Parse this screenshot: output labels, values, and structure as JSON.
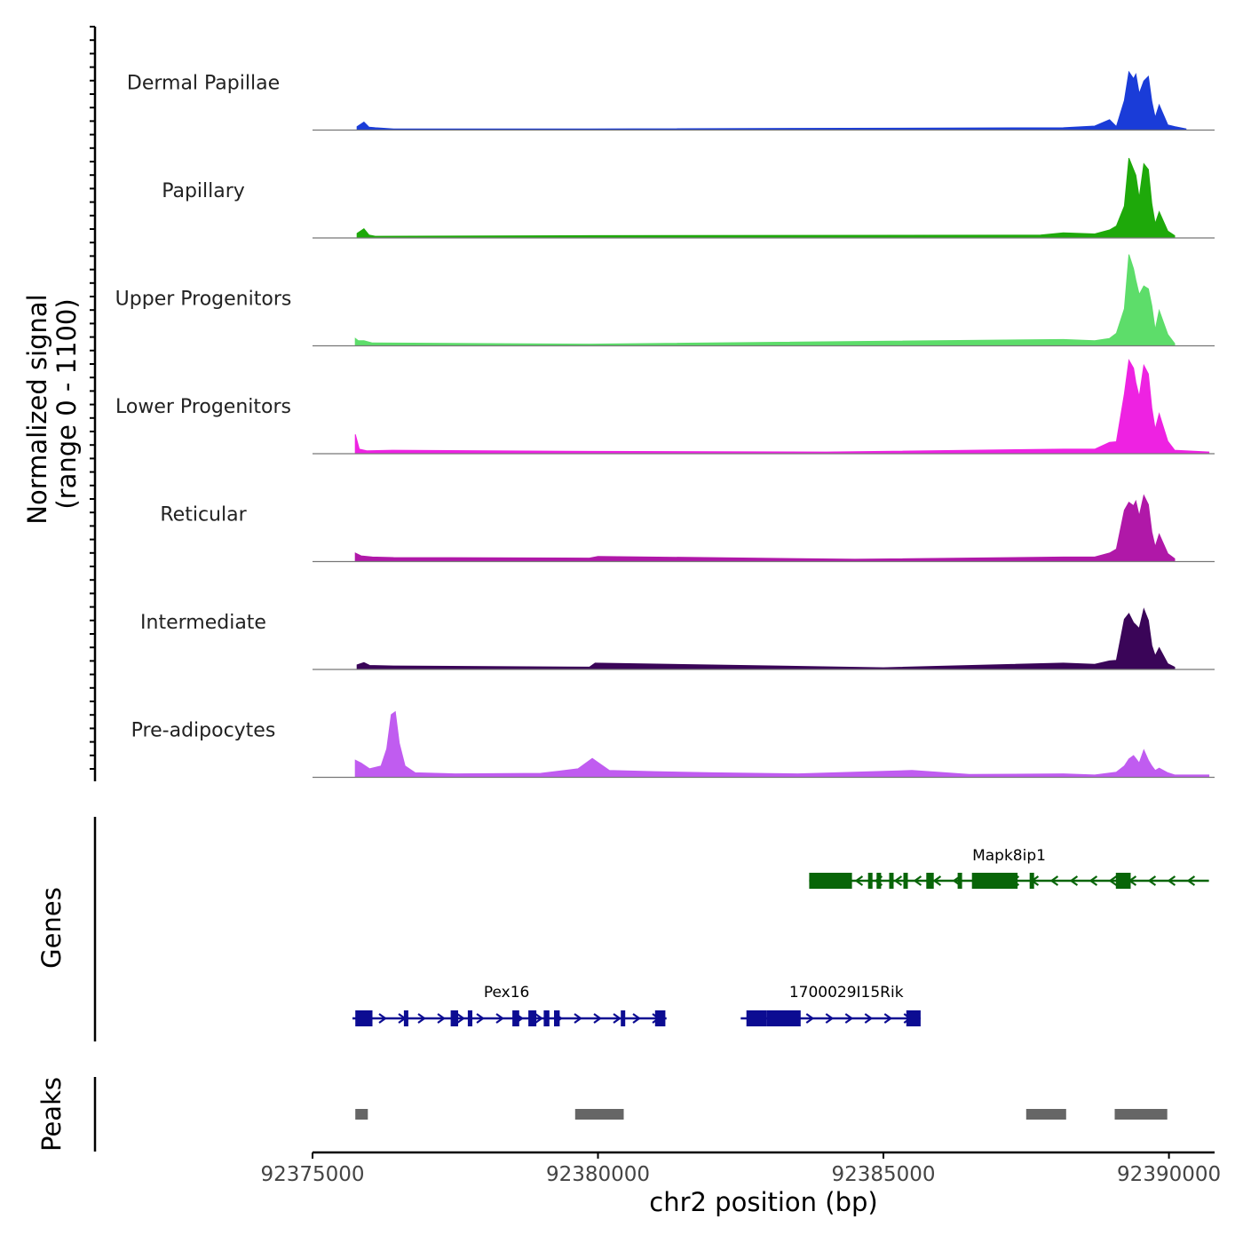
{
  "chart_data": {
    "type": "area",
    "title": "",
    "chromosome": "chr2",
    "xlabel": "chr2 position (bp)",
    "ylabel_line1": "Normalized signal",
    "ylabel_line2": "(range 0 - 1100)",
    "signal_range": [
      0,
      1100
    ],
    "xlim": [
      92375000,
      92390800
    ],
    "x_ticks": [
      92375000,
      92380000,
      92385000,
      92390000
    ],
    "x_tick_labels": [
      "92375000",
      "92380000",
      "92385000",
      "92390000"
    ],
    "tracks": [
      {
        "name": "Dermal Papillae",
        "color": "#1a3cd8",
        "x": [
          92375780,
          92375900,
          92375990,
          92376100,
          92376420,
          92379850,
          92388150,
          92388700,
          92388960,
          92389080,
          92389220,
          92389300,
          92389380,
          92389420,
          92389480,
          92389560,
          92389640,
          92389700,
          92389760,
          92389830,
          92389980,
          92390100,
          92390300
        ],
        "y": [
          60,
          140,
          50,
          40,
          20,
          20,
          40,
          70,
          180,
          60,
          520,
          1020,
          900,
          980,
          640,
          860,
          940,
          500,
          220,
          440,
          90,
          60,
          20
        ]
      },
      {
        "name": "Papillary",
        "color": "#1ea90a",
        "x": [
          92375780,
          92375900,
          92375990,
          92376100,
          92379850,
          92387750,
          92388150,
          92388700,
          92388960,
          92389080,
          92389220,
          92389300,
          92389380,
          92389420,
          92389480,
          92389560,
          92389640,
          92389700,
          92389760,
          92389830,
          92389980,
          92390100
        ],
        "y": [
          80,
          160,
          50,
          30,
          40,
          50,
          90,
          70,
          140,
          210,
          560,
          1400,
          1200,
          1100,
          700,
          1300,
          1200,
          600,
          250,
          460,
          120,
          40
        ]
      },
      {
        "name": "Upper Progenitors",
        "color": "#5ddd6a",
        "x": [
          92375750,
          92375800,
          92375900,
          92376050,
          92379850,
          92388150,
          92388700,
          92388960,
          92389080,
          92389220,
          92389300,
          92389380,
          92389420,
          92389480,
          92389560,
          92389640,
          92389700,
          92389760,
          92389830,
          92389980,
          92390100
        ],
        "y": [
          130,
          90,
          90,
          50,
          30,
          110,
          90,
          130,
          220,
          650,
          1600,
          1350,
          1150,
          900,
          1050,
          1000,
          700,
          280,
          620,
          200,
          40
        ]
      },
      {
        "name": "Lower Progenitors",
        "color": "#ee22e2",
        "x": [
          92375750,
          92375820,
          92375950,
          92376400,
          92379850,
          92384000,
          92388150,
          92388700,
          92388960,
          92389080,
          92389220,
          92389300,
          92389380,
          92389420,
          92389480,
          92389560,
          92389640,
          92389700,
          92389760,
          92389830,
          92389980,
          92390100,
          92390700
        ],
        "y": [
          340,
          80,
          50,
          60,
          40,
          30,
          80,
          80,
          200,
          210,
          1050,
          1640,
          1500,
          1250,
          1000,
          1550,
          1400,
          800,
          430,
          700,
          220,
          60,
          30
        ]
      },
      {
        "name": "Reticular",
        "color": "#b018a8",
        "x": [
          92375750,
          92375850,
          92376050,
          92376420,
          92379850,
          92380000,
          92384500,
          92388150,
          92388700,
          92388960,
          92389080,
          92389220,
          92389300,
          92389380,
          92389420,
          92389480,
          92389560,
          92389640,
          92389700,
          92389760,
          92389830,
          92389980,
          92390100
        ],
        "y": [
          150,
          100,
          80,
          70,
          60,
          90,
          40,
          80,
          80,
          150,
          220,
          900,
          1040,
          980,
          1060,
          800,
          1160,
          1000,
          520,
          260,
          480,
          140,
          50
        ]
      },
      {
        "name": "Intermediate",
        "color": "#3a0558",
        "x": [
          92375780,
          92375900,
          92376000,
          92376420,
          92379850,
          92379950,
          92385000,
          92388150,
          92388700,
          92388960,
          92389080,
          92389220,
          92389300,
          92389380,
          92389420,
          92389480,
          92389560,
          92389640,
          92389700,
          92389760,
          92389830,
          92389980,
          92390100
        ],
        "y": [
          80,
          120,
          70,
          60,
          40,
          110,
          30,
          110,
          90,
          150,
          160,
          880,
          980,
          820,
          780,
          720,
          1060,
          860,
          420,
          240,
          380,
          100,
          40
        ]
      },
      {
        "name": "Pre-adipocytes",
        "color": "#c05cf0",
        "x": [
          92375750,
          92375850,
          92376000,
          92376200,
          92376300,
          92376380,
          92376450,
          92376520,
          92376620,
          92376800,
          92377500,
          92379000,
          92379650,
          92379900,
          92380000,
          92380200,
          92381000,
          92382000,
          92383500,
          92385500,
          92386500,
          92388150,
          92388700,
          92389080,
          92389220,
          92389300,
          92389380,
          92389420,
          92389480,
          92389560,
          92389640,
          92389700,
          92389760,
          92389830,
          92389980,
          92390100,
          92390700
        ],
        "y": [
          300,
          250,
          150,
          200,
          500,
          1100,
          1150,
          600,
          200,
          80,
          60,
          70,
          150,
          330,
          260,
          120,
          100,
          80,
          60,
          120,
          50,
          60,
          40,
          90,
          200,
          320,
          380,
          330,
          250,
          480,
          300,
          200,
          120,
          160,
          80,
          40,
          40
        ]
      }
    ],
    "genes": [
      {
        "name": "Mapk8ip1",
        "strand": "-",
        "color": "#086508",
        "label_pos": 92387200,
        "start": 92383700,
        "end": 92390700,
        "exons": [
          [
            92383700,
            92384450
          ],
          [
            92384730,
            92384800
          ],
          [
            92384880,
            92384960
          ],
          [
            92385100,
            92385160
          ],
          [
            92385350,
            92385420
          ],
          [
            92385750,
            92385880
          ],
          [
            92386300,
            92386360
          ],
          [
            92386550,
            92387350
          ],
          [
            92387560,
            92387620
          ],
          [
            92389070,
            92389330
          ]
        ]
      },
      {
        "name": "Pex16",
        "strand": "+",
        "color": "#0c0c92",
        "label_pos": 92378400,
        "start": 92375700,
        "end": 92381200,
        "exons": [
          [
            92375750,
            92376050
          ],
          [
            92376600,
            92376640
          ],
          [
            92377420,
            92377550
          ],
          [
            92377720,
            92377800
          ],
          [
            92378500,
            92378620
          ],
          [
            92378780,
            92378920
          ],
          [
            92379050,
            92379150
          ],
          [
            92379230,
            92379330
          ],
          [
            92380400,
            92380440
          ],
          [
            92381000,
            92381180
          ]
        ]
      },
      {
        "name": "1700029I15Rik",
        "strand": "+",
        "color": "#0c0c92",
        "label_pos": 92384350,
        "start": 92382500,
        "end": 92385650,
        "exons": [
          [
            92382600,
            92382950
          ],
          [
            92382950,
            92383250
          ],
          [
            92383250,
            92383550
          ],
          [
            92385400,
            92385650
          ]
        ]
      }
    ],
    "peaks": [
      [
        92375750,
        92375970
      ],
      [
        92379600,
        92380450
      ],
      [
        92387500,
        92388200
      ],
      [
        92389050,
        92389970
      ]
    ],
    "panel_labels": {
      "genes": "Genes",
      "peaks": "Peaks"
    }
  }
}
